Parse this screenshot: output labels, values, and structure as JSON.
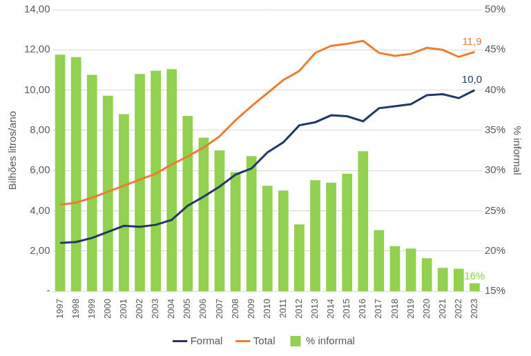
{
  "chart_data": {
    "type": "bar",
    "categories": [
      "1997",
      "1998",
      "1999",
      "2000",
      "2001",
      "2002",
      "2003",
      "2004",
      "2005",
      "2006",
      "2007",
      "2008",
      "2009",
      "2010",
      "2011",
      "2012",
      "2013",
      "2014",
      "2015",
      "2016",
      "2017",
      "2018",
      "2019",
      "2020",
      "2021",
      "2022",
      "2023"
    ],
    "series": [
      {
        "name": "% informal",
        "type": "bar",
        "color": "#92d050",
        "axis": "y2",
        "values": [
          44.4,
          44.1,
          41.9,
          39.3,
          37.0,
          42.0,
          42.4,
          42.6,
          36.8,
          34.1,
          32.5,
          29.8,
          31.8,
          28.1,
          27.5,
          23.3,
          28.8,
          28.5,
          29.6,
          32.4,
          22.6,
          20.6,
          20.3,
          19.1,
          17.9,
          17.8,
          16.0
        ],
        "value_labels": [
          null,
          null,
          null,
          null,
          null,
          null,
          null,
          null,
          null,
          null,
          null,
          null,
          null,
          null,
          null,
          null,
          null,
          null,
          null,
          null,
          null,
          null,
          null,
          null,
          null,
          null,
          "16%"
        ]
      },
      {
        "name": "Formal",
        "type": "line",
        "color": "#1f3864",
        "values": [
          2.4,
          2.45,
          2.65,
          2.95,
          3.25,
          3.2,
          3.3,
          3.55,
          4.25,
          4.7,
          5.2,
          5.8,
          6.1,
          6.9,
          7.4,
          8.25,
          8.4,
          8.75,
          8.7,
          8.45,
          9.1,
          9.2,
          9.3,
          9.75,
          9.8,
          9.6,
          10.0
        ],
        "value_labels": [
          null,
          null,
          null,
          null,
          null,
          null,
          null,
          null,
          null,
          null,
          null,
          null,
          null,
          null,
          null,
          null,
          null,
          null,
          null,
          null,
          null,
          null,
          null,
          null,
          null,
          null,
          "10,0"
        ]
      },
      {
        "name": "Total",
        "type": "line",
        "color": "#ed7d31",
        "values": [
          4.3,
          4.4,
          4.65,
          4.95,
          5.25,
          5.55,
          5.85,
          6.3,
          6.7,
          7.15,
          7.7,
          8.5,
          9.2,
          9.85,
          10.5,
          10.95,
          11.85,
          12.2,
          12.3,
          12.45,
          11.85,
          11.7,
          11.8,
          12.1,
          12.0,
          11.65,
          11.9
        ],
        "value_labels": [
          null,
          null,
          null,
          null,
          null,
          null,
          null,
          null,
          null,
          null,
          null,
          null,
          null,
          null,
          null,
          null,
          null,
          null,
          null,
          null,
          null,
          null,
          null,
          null,
          null,
          null,
          "11,9"
        ]
      }
    ],
    "y_label": "Bilhões litros/ano",
    "y2_label": "% informal",
    "ylim": [
      0,
      14
    ],
    "yticks": [
      {
        "value": 0,
        "label": "-"
      },
      {
        "value": 2,
        "label": "2,00"
      },
      {
        "value": 4,
        "label": "4,00"
      },
      {
        "value": 6,
        "label": "6,00"
      },
      {
        "value": 8,
        "label": "8,00"
      },
      {
        "value": 10,
        "label": "10,00"
      },
      {
        "value": 12,
        "label": "12,00"
      },
      {
        "value": 14,
        "label": "14,00"
      }
    ],
    "y2lim": [
      15,
      50
    ],
    "y2ticks": [
      {
        "value": 15,
        "label": "15%"
      },
      {
        "value": 20,
        "label": "20%"
      },
      {
        "value": 25,
        "label": "25%"
      },
      {
        "value": 30,
        "label": "30%"
      },
      {
        "value": 35,
        "label": "35%"
      },
      {
        "value": 40,
        "label": "40%"
      },
      {
        "value": 45,
        "label": "45%"
      },
      {
        "value": 50,
        "label": "50%"
      }
    ],
    "grid": true,
    "data_labels": true,
    "legend": "bottom"
  }
}
